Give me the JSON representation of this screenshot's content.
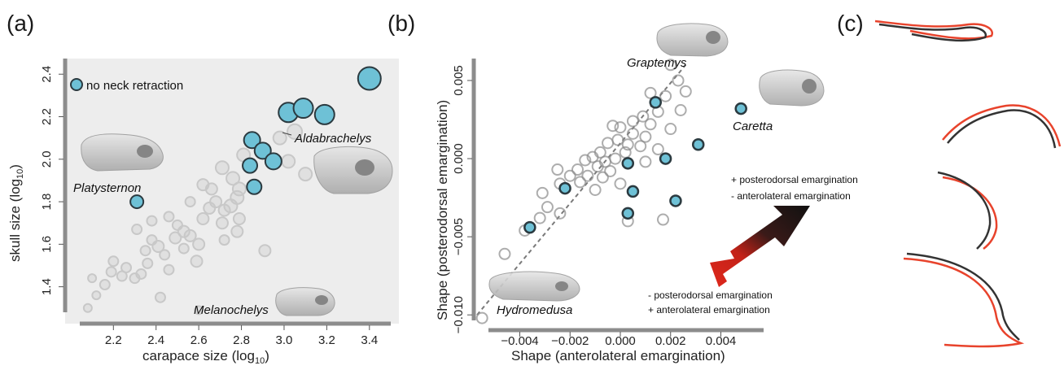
{
  "panels": {
    "a": {
      "label": "(a)",
      "xlabel": "carapace size (log",
      "xlabel_sub": "10",
      "ylabel": "skull size (log",
      "ylabel_sub": "10",
      "legend": "no neck retraction",
      "species": {
        "aldabrachelys": "Aldabrachelys",
        "platysternon": "Platysternon",
        "melanochelys": "Melanochelys"
      }
    },
    "b": {
      "label": "(b)",
      "xlabel": "Shape (anterolateral emargination)",
      "ylabel": "Shape (posterodorsal emargination)",
      "species": {
        "graptemys": "Graptemys",
        "caretta": "Caretta",
        "hydromedusa": "Hydromedusa"
      },
      "arrow_up_line1": "+ posterodorsal emargination",
      "arrow_up_line2": "- anterolateral emargination",
      "arrow_down_line1": "- posterodorsal emargination",
      "arrow_down_line2": "+ anterolateral emargination"
    },
    "c": {
      "label": "(c)"
    }
  },
  "colors": {
    "highlight": "#6ec1d6",
    "highlight_stroke": "#2b3a40",
    "faint": "#c8c8c8",
    "ring": "#8a8a8a",
    "arrow_red": "#e0281c",
    "arrow_black": "#151515",
    "outline_red": "#e8432c",
    "outline_black": "#333333"
  },
  "chart_data": [
    {
      "type": "scatter",
      "panel": "a",
      "xlim": [
        2.05,
        3.5
      ],
      "ylim": [
        1.28,
        2.42
      ],
      "xticks": [
        "2.2",
        "2.4",
        "2.6",
        "2.8",
        "3.0",
        "3.2",
        "3.4"
      ],
      "xtick_values": [
        2.2,
        2.4,
        2.6,
        2.8,
        3.0,
        3.2,
        3.4
      ],
      "yticks": [
        "1.4",
        "1.6",
        "1.8",
        "2.0",
        "2.2",
        "2.4"
      ],
      "ytick_values": [
        1.4,
        1.6,
        1.8,
        2.0,
        2.2,
        2.4
      ],
      "series": [
        {
          "name": "no neck retraction",
          "points": [
            {
              "x": 2.31,
              "y": 1.8,
              "s": 8
            },
            {
              "x": 2.85,
              "y": 2.09,
              "s": 10
            },
            {
              "x": 2.9,
              "y": 2.04,
              "s": 10
            },
            {
              "x": 2.84,
              "y": 1.97,
              "s": 9
            },
            {
              "x": 2.95,
              "y": 1.99,
              "s": 10
            },
            {
              "x": 2.86,
              "y": 1.87,
              "s": 9
            },
            {
              "x": 3.02,
              "y": 2.22,
              "s": 12
            },
            {
              "x": 3.09,
              "y": 2.24,
              "s": 12
            },
            {
              "x": 3.19,
              "y": 2.21,
              "s": 12
            },
            {
              "x": 3.4,
              "y": 2.38,
              "s": 14
            }
          ]
        },
        {
          "name": "",
          "points": [
            {
              "x": 2.08,
              "y": 1.3,
              "s": 5
            },
            {
              "x": 2.12,
              "y": 1.36,
              "s": 5
            },
            {
              "x": 2.1,
              "y": 1.44,
              "s": 5
            },
            {
              "x": 2.16,
              "y": 1.41,
              "s": 6
            },
            {
              "x": 2.19,
              "y": 1.47,
              "s": 6
            },
            {
              "x": 2.24,
              "y": 1.45,
              "s": 6
            },
            {
              "x": 2.2,
              "y": 1.52,
              "s": 6
            },
            {
              "x": 2.26,
              "y": 1.49,
              "s": 6
            },
            {
              "x": 2.3,
              "y": 1.44,
              "s": 6
            },
            {
              "x": 2.33,
              "y": 1.46,
              "s": 6
            },
            {
              "x": 2.36,
              "y": 1.51,
              "s": 6
            },
            {
              "x": 2.35,
              "y": 1.57,
              "s": 6
            },
            {
              "x": 2.38,
              "y": 1.62,
              "s": 6
            },
            {
              "x": 2.41,
              "y": 1.59,
              "s": 7
            },
            {
              "x": 2.44,
              "y": 1.55,
              "s": 6
            },
            {
              "x": 2.46,
              "y": 1.48,
              "s": 6
            },
            {
              "x": 2.42,
              "y": 1.35,
              "s": 6
            },
            {
              "x": 2.31,
              "y": 1.67,
              "s": 6
            },
            {
              "x": 2.38,
              "y": 1.71,
              "s": 6
            },
            {
              "x": 2.46,
              "y": 1.73,
              "s": 6
            },
            {
              "x": 2.49,
              "y": 1.63,
              "s": 7
            },
            {
              "x": 2.53,
              "y": 1.66,
              "s": 7
            },
            {
              "x": 2.56,
              "y": 1.64,
              "s": 7
            },
            {
              "x": 2.6,
              "y": 1.6,
              "s": 7
            },
            {
              "x": 2.53,
              "y": 1.58,
              "s": 6
            },
            {
              "x": 2.59,
              "y": 1.52,
              "s": 7
            },
            {
              "x": 2.62,
              "y": 1.72,
              "s": 7
            },
            {
              "x": 2.65,
              "y": 1.77,
              "s": 7
            },
            {
              "x": 2.68,
              "y": 1.8,
              "s": 7
            },
            {
              "x": 2.72,
              "y": 1.76,
              "s": 7
            },
            {
              "x": 2.75,
              "y": 1.78,
              "s": 8
            },
            {
              "x": 2.78,
              "y": 1.82,
              "s": 8
            },
            {
              "x": 2.71,
              "y": 1.7,
              "s": 7
            },
            {
              "x": 2.79,
              "y": 1.72,
              "s": 7
            },
            {
              "x": 2.62,
              "y": 1.88,
              "s": 7
            },
            {
              "x": 2.71,
              "y": 1.96,
              "s": 8
            },
            {
              "x": 2.76,
              "y": 1.91,
              "s": 8
            },
            {
              "x": 2.79,
              "y": 1.86,
              "s": 8
            },
            {
              "x": 2.81,
              "y": 2.02,
              "s": 8
            },
            {
              "x": 2.91,
              "y": 1.57,
              "s": 7
            },
            {
              "x": 2.78,
              "y": 1.66,
              "s": 7
            },
            {
              "x": 2.98,
              "y": 2.1,
              "s": 8
            },
            {
              "x": 3.02,
              "y": 1.99,
              "s": 8
            },
            {
              "x": 3.05,
              "y": 2.13,
              "s": 9
            },
            {
              "x": 3.1,
              "y": 1.93,
              "s": 8
            },
            {
              "x": 2.72,
              "y": 1.62,
              "s": 6
            },
            {
              "x": 2.56,
              "y": 1.8,
              "s": 6
            },
            {
              "x": 2.66,
              "y": 1.86,
              "s": 7
            },
            {
              "x": 2.6,
              "y": 1.29,
              "s": 5
            },
            {
              "x": 2.5,
              "y": 1.69,
              "s": 6
            }
          ]
        }
      ]
    },
    {
      "type": "scatter",
      "panel": "b",
      "xlim": [
        -0.0057,
        0.0057
      ],
      "ylim": [
        -0.0103,
        0.0063
      ],
      "xticks": [
        "−0.004",
        "−0.002",
        "0.000",
        "0.002",
        "0.004"
      ],
      "xtick_values": [
        -0.004,
        -0.002,
        0.0,
        0.002,
        0.004
      ],
      "yticks": [
        "−0.010",
        "−0.005",
        "0.000",
        "0.005"
      ],
      "ytick_values": [
        -0.01,
        -0.005,
        0.0,
        0.005
      ],
      "trend_line": {
        "x": [
          -0.0057,
          0.0026
        ],
        "y": [
          -0.01,
          0.006
        ]
      },
      "series": [
        {
          "name": "no neck retraction",
          "points": [
            {
              "x": 0.0014,
              "y": 0.0036
            },
            {
              "x": 0.0048,
              "y": 0.0032
            },
            {
              "x": 0.0031,
              "y": 0.0009
            },
            {
              "x": 0.0018,
              "y": 0.0
            },
            {
              "x": 0.0003,
              "y": -0.0003
            },
            {
              "x": -0.0022,
              "y": -0.0019
            },
            {
              "x": 0.0005,
              "y": -0.0021
            },
            {
              "x": 0.0022,
              "y": -0.0027
            },
            {
              "x": 0.0003,
              "y": -0.0035
            },
            {
              "x": -0.0036,
              "y": -0.0044
            }
          ]
        },
        {
          "name": "",
          "points": [
            {
              "x": 0.002,
              "y": 0.006
            },
            {
              "x": 0.0023,
              "y": 0.005
            },
            {
              "x": 0.0026,
              "y": 0.0043
            },
            {
              "x": 0.0018,
              "y": 0.004
            },
            {
              "x": 0.0012,
              "y": 0.0042
            },
            {
              "x": 0.0015,
              "y": 0.003
            },
            {
              "x": 0.0009,
              "y": 0.0027
            },
            {
              "x": 0.0005,
              "y": 0.0024
            },
            {
              "x": 0.0012,
              "y": 0.0022
            },
            {
              "x": 0.002,
              "y": 0.0019
            },
            {
              "x": 0.0,
              "y": 0.002
            },
            {
              "x": -0.0003,
              "y": 0.0021
            },
            {
              "x": 0.0005,
              "y": 0.0016
            },
            {
              "x": 0.001,
              "y": 0.0014
            },
            {
              "x": -0.0001,
              "y": 0.0012
            },
            {
              "x": 0.0003,
              "y": 0.0009
            },
            {
              "x": -0.0005,
              "y": 0.001
            },
            {
              "x": 0.0008,
              "y": 0.0008
            },
            {
              "x": -0.0008,
              "y": 0.0004
            },
            {
              "x": 0.0002,
              "y": 0.0004
            },
            {
              "x": -0.0011,
              "y": 0.0001
            },
            {
              "x": -0.0002,
              "y": 0.0
            },
            {
              "x": -0.0014,
              "y": -0.0001
            },
            {
              "x": -0.0006,
              "y": -0.0002
            },
            {
              "x": 0.001,
              "y": -0.0002
            },
            {
              "x": -0.0017,
              "y": -0.0007
            },
            {
              "x": -0.0009,
              "y": -0.0005
            },
            {
              "x": -0.0004,
              "y": -0.0008
            },
            {
              "x": -0.002,
              "y": -0.0011
            },
            {
              "x": -0.0013,
              "y": -0.0011
            },
            {
              "x": -0.0007,
              "y": -0.0012
            },
            {
              "x": -0.0024,
              "y": -0.0016
            },
            {
              "x": -0.0016,
              "y": -0.0015
            },
            {
              "x": 0.0,
              "y": -0.0016
            },
            {
              "x": -0.0031,
              "y": -0.0022
            },
            {
              "x": -0.001,
              "y": -0.002
            },
            {
              "x": -0.0029,
              "y": -0.0031
            },
            {
              "x": -0.0024,
              "y": -0.0035
            },
            {
              "x": -0.0032,
              "y": -0.0038
            },
            {
              "x": -0.0038,
              "y": -0.0046
            },
            {
              "x": 0.0003,
              "y": -0.004
            },
            {
              "x": 0.0017,
              "y": -0.0039
            },
            {
              "x": -0.0025,
              "y": -0.0007
            },
            {
              "x": 0.0015,
              "y": 0.0006
            },
            {
              "x": -0.0046,
              "y": -0.0061
            },
            {
              "x": 0.0024,
              "y": 0.0031
            },
            {
              "x": -0.0055,
              "y": -0.0102
            }
          ]
        }
      ]
    }
  ]
}
